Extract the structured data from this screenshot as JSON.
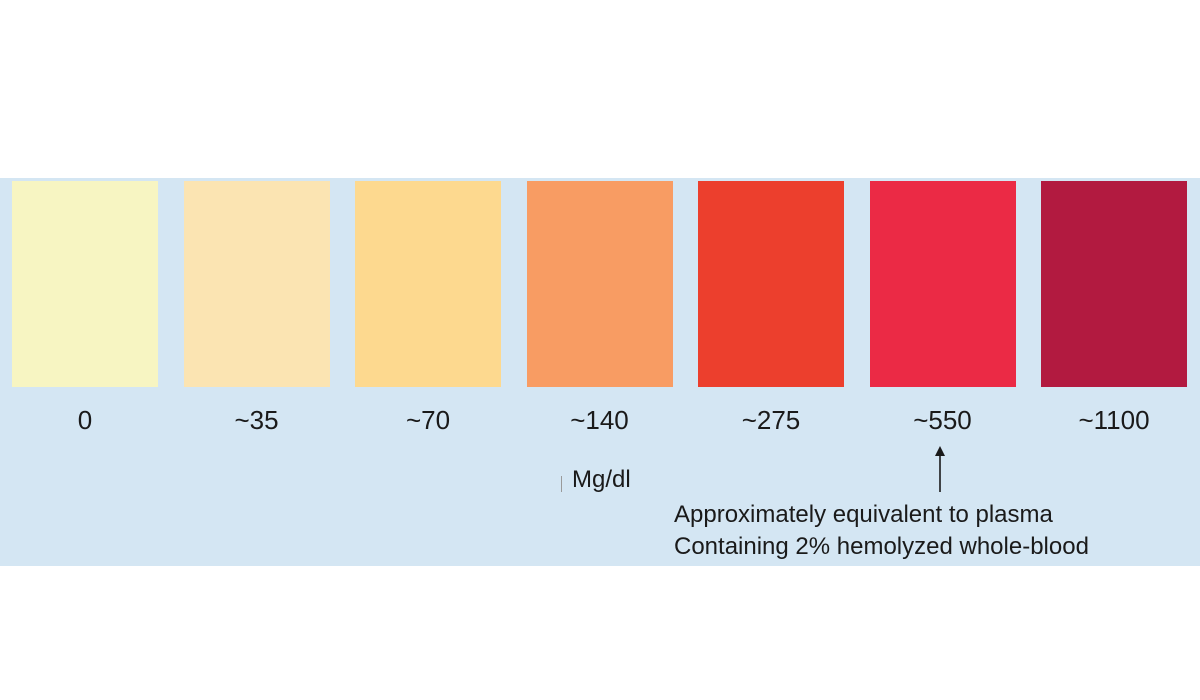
{
  "scale": {
    "swatches": [
      {
        "value_label": "0",
        "color": "#f7f5c2"
      },
      {
        "value_label": "~35",
        "color": "#fbe4b2"
      },
      {
        "value_label": "~70",
        "color": "#fdd98f"
      },
      {
        "value_label": "~140",
        "color": "#f89c63"
      },
      {
        "value_label": "~275",
        "color": "#ec3f2d"
      },
      {
        "value_label": "~550",
        "color": "#eb2a45"
      },
      {
        "value_label": "~1100",
        "color": "#b21a40"
      }
    ],
    "unit": "Mg/dl",
    "annotation": {
      "line1": "Approximately equivalent to plasma",
      "line2": "Containing 2% hemolyzed whole-blood"
    },
    "panel_color": "#d4e6f3",
    "arrow_icon": "up-arrow-icon"
  }
}
